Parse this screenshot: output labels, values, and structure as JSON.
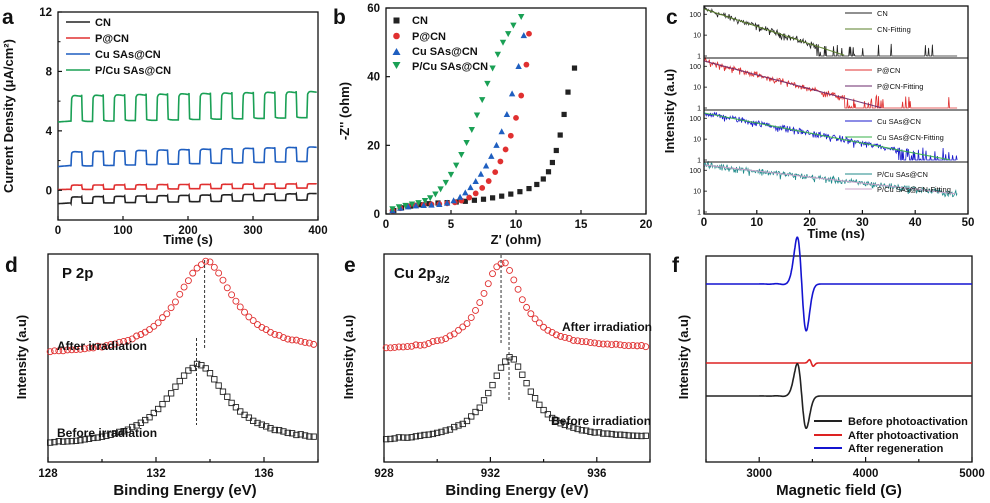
{
  "colors": {
    "black": "#222222",
    "red": "#e03030",
    "blue": "#1f5fc0",
    "green": "#1aa055",
    "teal": "#1f8a8a",
    "navy": "#1a1acc",
    "epr_blue": "#1414d0",
    "epr_red": "#dd2222"
  },
  "chart_data": [
    {
      "panel": "a",
      "type": "line",
      "xlabel": "Time (s)",
      "ylabel": "Current Density (μA/cm²)",
      "xlim": [
        0,
        400
      ],
      "ylim": [
        -2,
        12
      ],
      "xticks": [
        "0",
        "100",
        "200",
        "300",
        "400"
      ],
      "yticks": [
        "0",
        "4",
        "8",
        "12"
      ],
      "cycle_period_s": 33,
      "series": [
        {
          "name": "CN",
          "color": "#222222",
          "base": -0.9,
          "photo_amp": 0.45,
          "drift": 0.25
        },
        {
          "name": "P@CN",
          "color": "#e03030",
          "base": 0.05,
          "photo_amp": 0.3,
          "drift": 0.1
        },
        {
          "name": "Cu SAs@CN",
          "color": "#1f5fc0",
          "base": 1.6,
          "photo_amp": 1.0,
          "drift": 0.35
        },
        {
          "name": "P/Cu SAs@CN",
          "color": "#1aa055",
          "base": 4.6,
          "photo_amp": 1.8,
          "drift": 0.3
        }
      ]
    },
    {
      "panel": "b",
      "type": "scatter",
      "xlabel": "Z' (ohm)",
      "ylabel": "-Z'' (ohm)",
      "xlim": [
        0,
        20
      ],
      "ylim": [
        0,
        60
      ],
      "xticks": [
        "0",
        "5",
        "10",
        "15",
        "20"
      ],
      "yticks": [
        "0",
        "20",
        "40",
        "60"
      ],
      "series": [
        {
          "name": "CN",
          "marker": "square",
          "color": "#222222",
          "x": [
            0.6,
            1.2,
            1.9,
            2.6,
            3.3,
            4.0,
            4.7,
            5.4,
            6.1,
            6.8,
            7.5,
            8.2,
            8.9,
            9.6,
            10.3,
            11.0,
            11.6,
            12.1,
            12.5,
            12.8,
            13.1,
            13.4,
            13.7,
            14.0,
            14.5
          ],
          "y": [
            1.0,
            1.8,
            2.3,
            2.7,
            3.0,
            3.2,
            3.3,
            3.5,
            3.7,
            4.0,
            4.3,
            4.7,
            5.2,
            5.8,
            6.5,
            7.4,
            8.6,
            10.2,
            12.3,
            15.0,
            18.5,
            23.0,
            29.0,
            35.5,
            42.5
          ]
        },
        {
          "name": "P@CN",
          "marker": "circle",
          "color": "#e03030",
          "x": [
            0.5,
            1.1,
            1.7,
            2.3,
            2.9,
            3.5,
            4.1,
            4.7,
            5.3,
            5.8,
            6.4,
            6.9,
            7.4,
            7.9,
            8.4,
            8.8,
            9.2,
            9.6,
            10.0,
            10.4,
            10.8,
            11.0
          ],
          "y": [
            1.0,
            1.7,
            2.2,
            2.5,
            2.7,
            2.8,
            2.9,
            3.1,
            3.4,
            3.9,
            4.8,
            6.0,
            7.6,
            9.6,
            12.2,
            15.3,
            18.8,
            22.8,
            28.0,
            34.5,
            43.5,
            52.5
          ]
        },
        {
          "name": "Cu SAs@CN",
          "marker": "triangle-up",
          "color": "#1f5fc0",
          "x": [
            0.5,
            1.1,
            1.7,
            2.3,
            2.9,
            3.5,
            4.1,
            4.7,
            5.2,
            5.7,
            6.1,
            6.5,
            6.9,
            7.3,
            7.7,
            8.1,
            8.5,
            8.9,
            9.3,
            9.7,
            10.2,
            10.6
          ],
          "y": [
            1.0,
            1.7,
            2.1,
            2.4,
            2.5,
            2.6,
            2.8,
            3.2,
            3.9,
            4.9,
            6.2,
            7.7,
            9.5,
            11.6,
            14.0,
            16.8,
            20.0,
            24.0,
            29.0,
            35.0,
            43.0,
            52.0
          ]
        },
        {
          "name": "P/Cu SAs@CN",
          "marker": "triangle-down",
          "color": "#1aa055",
          "x": [
            0.5,
            1.0,
            1.5,
            2.0,
            2.5,
            3.0,
            3.4,
            3.8,
            4.2,
            4.6,
            5.0,
            5.4,
            5.8,
            6.2,
            6.6,
            7.0,
            7.4,
            7.8,
            8.2,
            8.6,
            9.0,
            9.4,
            9.8,
            10.4
          ],
          "y": [
            1.5,
            2.1,
            2.5,
            2.9,
            3.3,
            3.9,
            4.7,
            5.8,
            7.3,
            9.2,
            11.5,
            14.2,
            17.3,
            20.8,
            24.6,
            28.8,
            33.3,
            38.0,
            42.5,
            46.5,
            50.0,
            52.5,
            55.0,
            57.5
          ]
        }
      ]
    },
    {
      "panel": "c",
      "type": "line",
      "xlabel": "Time (ns)",
      "ylabel": "Intensity (a.u)",
      "xlim": [
        0,
        50
      ],
      "xticks": [
        "0",
        "10",
        "20",
        "30",
        "40",
        "50"
      ],
      "subplot_yticks": [
        "100",
        "10",
        "1"
      ],
      "subplots": [
        {
          "data": "CN",
          "fit": "CN-Fitting",
          "color": "#222222",
          "fit_color": "#5a7f2a",
          "lifetime_ns": 5.2
        },
        {
          "data": "P@CN",
          "fit": "P@CN-Fitting",
          "color": "#e03030",
          "fit_color": "#6b2a6b",
          "lifetime_ns": 6.5
        },
        {
          "data": "Cu SAs@CN",
          "fit": "Cu SAs@CN-Fitting",
          "color": "#1a1acc",
          "fit_color": "#37b24a",
          "lifetime_ns": 9.0
        },
        {
          "data": "P/Cu SAs@CN",
          "fit": "P/Cu SAs@CN-Fitting",
          "color": "#1f8a8a",
          "fit_color": "#c9a0c9",
          "lifetime_ns": 15.0
        }
      ]
    },
    {
      "panel": "d",
      "type": "scatter",
      "title": "P 2p",
      "xlabel": "Binding Energy (eV)",
      "ylabel": "Intensity (a.u)",
      "xlim": [
        128,
        138
      ],
      "xticks": [
        "128",
        "132",
        "136"
      ],
      "series": [
        {
          "name": "After irradiation",
          "marker": "circle-open",
          "color": "#e03030",
          "peak_eV": 133.8,
          "fwhm_eV": 2.6
        },
        {
          "name": "Before irradiation",
          "marker": "square-open",
          "color": "#222222",
          "peak_eV": 133.5,
          "fwhm_eV": 2.7
        }
      ]
    },
    {
      "panel": "e",
      "type": "scatter",
      "title": "Cu 2p",
      "title_sub": "3/2",
      "xlabel": "Binding Energy (eV)",
      "ylabel": "Intensity (a.u)",
      "xlim": [
        928,
        938
      ],
      "xticks": [
        "928",
        "932",
        "936"
      ],
      "series": [
        {
          "name": "After irradiation",
          "marker": "circle-open",
          "color": "#e03030",
          "peak_eV": 932.4,
          "fwhm_eV": 1.8
        },
        {
          "name": "Before irradiation",
          "marker": "square-open",
          "color": "#222222",
          "peak_eV": 932.7,
          "fwhm_eV": 1.9
        }
      ]
    },
    {
      "panel": "f",
      "type": "line",
      "xlabel": "Magnetic field (G)",
      "ylabel": "Intensity (a.u)",
      "xlim": [
        2500,
        5000
      ],
      "xticks": [
        "3000",
        "4000",
        "5000"
      ],
      "series": [
        {
          "name": "Before photoactivation",
          "color": "#222222",
          "center_G": 3400,
          "amp": 1.0
        },
        {
          "name": "After photoactivation",
          "color": "#dd2222",
          "center_G": 3490,
          "amp": 0.12
        },
        {
          "name": "After regeneration",
          "color": "#1414d0",
          "center_G": 3400,
          "amp": 1.45
        }
      ]
    }
  ]
}
